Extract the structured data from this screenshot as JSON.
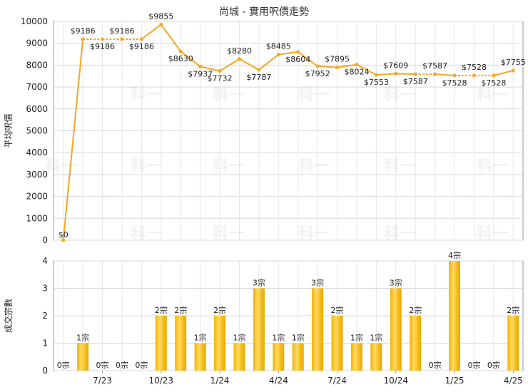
{
  "title": "尚城 - 實用呎價走勢",
  "watermark": "科一",
  "chart_data": [
    {
      "type": "line",
      "ylabel": "平均呎價",
      "ylim": [
        0,
        10000
      ],
      "yticks": [
        "0",
        "1000",
        "2000",
        "3000",
        "4000",
        "5000",
        "6000",
        "7000",
        "8000",
        "9000",
        "10000"
      ],
      "color": "#f5a623",
      "values": [
        0,
        9186,
        9186,
        9186,
        9186,
        9855,
        8630,
        7937,
        7732,
        8280,
        7787,
        8485,
        8604,
        7952,
        7895,
        8024,
        7553,
        7609,
        7587,
        7587,
        7528,
        7528,
        7528,
        7755
      ],
      "labels": [
        "$0",
        "$9186",
        "$9186",
        "$9186",
        "$9186",
        "$9855",
        "$8630",
        "$7937",
        "$7732",
        "$8280",
        "$7787",
        "$8485",
        "$8604",
        "$7952",
        "$7895",
        "$8024",
        "$7553",
        "$7609",
        "$7587",
        "$7587",
        "$7528",
        "$7528",
        "$7528",
        "$7755"
      ]
    },
    {
      "type": "bar",
      "ylabel": "成交宗數",
      "ylim": [
        0,
        4
      ],
      "yticks": [
        "0",
        "1",
        "2",
        "3",
        "4"
      ],
      "x_tick_labels": [
        "7/23",
        "10/23",
        "1/24",
        "4/24",
        "7/24",
        "10/24",
        "1/25",
        "4/25"
      ],
      "x_tick_index": [
        2,
        5,
        8,
        11,
        14,
        17,
        20,
        23
      ],
      "values": [
        0,
        1,
        0,
        0,
        0,
        2,
        2,
        1,
        2,
        1,
        3,
        1,
        1,
        3,
        2,
        1,
        1,
        3,
        2,
        0,
        4,
        0,
        0,
        2
      ],
      "labels": [
        "0宗",
        "1宗",
        "0宗",
        "0宗",
        "0宗",
        "2宗",
        "2宗",
        "1宗",
        "2宗",
        "1宗",
        "3宗",
        "1宗",
        "1宗",
        "3宗",
        "2宗",
        "1宗",
        "1宗",
        "3宗",
        "2宗",
        "0宗",
        "4宗",
        "0宗",
        "0宗",
        "2宗"
      ]
    }
  ]
}
